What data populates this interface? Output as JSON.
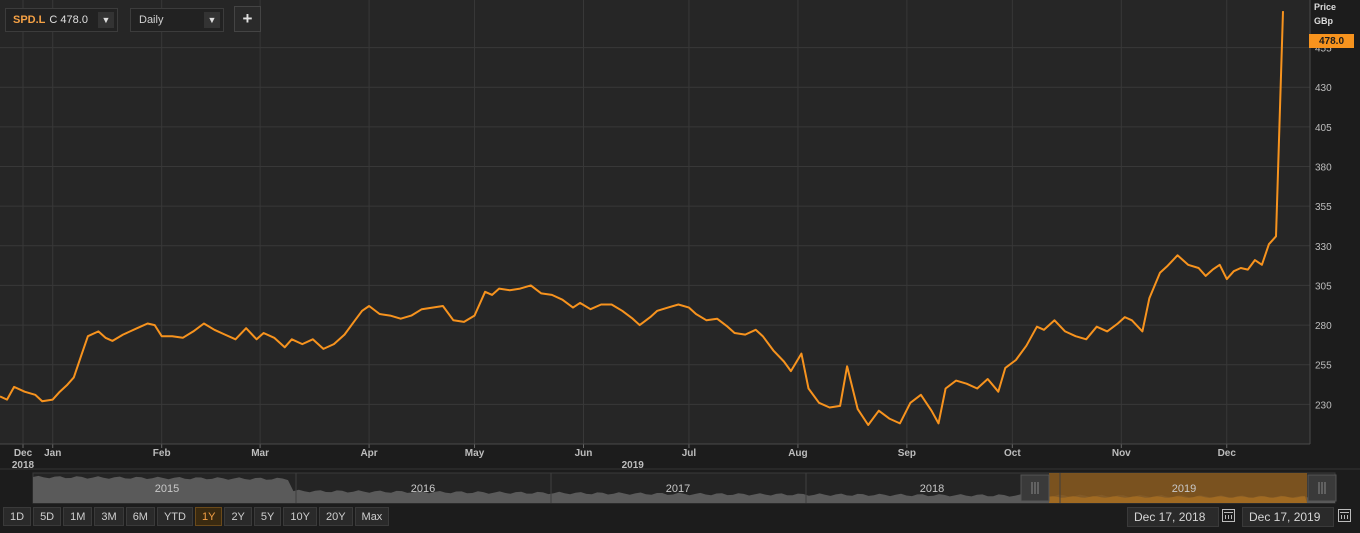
{
  "toolbar": {
    "ticker_symbol": "SPD.L",
    "ticker_close": "C 478.0",
    "interval": "Daily",
    "add_label": "+"
  },
  "price_panel": {
    "title_line1": "Price",
    "title_line2": "GBp",
    "last_price_label": "478.0"
  },
  "colors": {
    "background": "#1c1c1c",
    "plot_background": "#262626",
    "grid": "#383838",
    "line": "#f7931e",
    "badge": "#f7931e"
  },
  "chart_data": {
    "type": "line",
    "title": "",
    "xlabel": "",
    "ylabel": "Price GBp",
    "ylim": [
      205,
      485
    ],
    "yticks": [
      230,
      255,
      280,
      305,
      330,
      355,
      380,
      405,
      430,
      455
    ],
    "x_start": "2018-12-17",
    "x_end": "2019-12-17",
    "month_labels": [
      {
        "label": "Dec",
        "date": "2018-12-01"
      },
      {
        "label": "Jan",
        "date": "2019-01-01"
      },
      {
        "label": "Feb",
        "date": "2019-02-01"
      },
      {
        "label": "Mar",
        "date": "2019-03-01"
      },
      {
        "label": "Apr",
        "date": "2019-04-01"
      },
      {
        "label": "May",
        "date": "2019-05-01"
      },
      {
        "label": "Jun",
        "date": "2019-06-01"
      },
      {
        "label": "Jul",
        "date": "2019-07-01"
      },
      {
        "label": "Aug",
        "date": "2019-08-01"
      },
      {
        "label": "Sep",
        "date": "2019-09-01"
      },
      {
        "label": "Oct",
        "date": "2019-10-01"
      },
      {
        "label": "Nov",
        "date": "2019-11-01"
      },
      {
        "label": "Dec",
        "date": "2019-12-01"
      }
    ],
    "year_labels": [
      {
        "label": "2018",
        "date": "2018-12-01"
      },
      {
        "label": "2019",
        "date": "2019-06-15"
      }
    ],
    "grid": true,
    "series": [
      {
        "values": [
          [
            "2018-12-17",
            235
          ],
          [
            "2018-12-19",
            233
          ],
          [
            "2018-12-21",
            241
          ],
          [
            "2018-12-24",
            238
          ],
          [
            "2018-12-27",
            236
          ],
          [
            "2018-12-29",
            232
          ],
          [
            "2019-01-01",
            233
          ],
          [
            "2019-01-03",
            238
          ],
          [
            "2019-01-05",
            242
          ],
          [
            "2019-01-07",
            247
          ],
          [
            "2019-01-09",
            260
          ],
          [
            "2019-01-11",
            273
          ],
          [
            "2019-01-14",
            276
          ],
          [
            "2019-01-16",
            272
          ],
          [
            "2019-01-18",
            270
          ],
          [
            "2019-01-21",
            274
          ],
          [
            "2019-01-23",
            276
          ],
          [
            "2019-01-25",
            278
          ],
          [
            "2019-01-28",
            281
          ],
          [
            "2019-01-30",
            280
          ],
          [
            "2019-02-01",
            273
          ],
          [
            "2019-02-04",
            273
          ],
          [
            "2019-02-07",
            272
          ],
          [
            "2019-02-10",
            276
          ],
          [
            "2019-02-13",
            281
          ],
          [
            "2019-02-16",
            277
          ],
          [
            "2019-02-19",
            274
          ],
          [
            "2019-02-22",
            271
          ],
          [
            "2019-02-25",
            278
          ],
          [
            "2019-02-28",
            271
          ],
          [
            "2019-03-02",
            275
          ],
          [
            "2019-03-05",
            272
          ],
          [
            "2019-03-08",
            266
          ],
          [
            "2019-03-10",
            271
          ],
          [
            "2019-03-13",
            268
          ],
          [
            "2019-03-16",
            271
          ],
          [
            "2019-03-19",
            265
          ],
          [
            "2019-03-22",
            268
          ],
          [
            "2019-03-25",
            274
          ],
          [
            "2019-03-28",
            283
          ],
          [
            "2019-03-30",
            289
          ],
          [
            "2019-04-01",
            292
          ],
          [
            "2019-04-04",
            287
          ],
          [
            "2019-04-07",
            286
          ],
          [
            "2019-04-10",
            284
          ],
          [
            "2019-04-13",
            286
          ],
          [
            "2019-04-16",
            290
          ],
          [
            "2019-04-19",
            291
          ],
          [
            "2019-04-22",
            292
          ],
          [
            "2019-04-25",
            283
          ],
          [
            "2019-04-28",
            282
          ],
          [
            "2019-05-01",
            286
          ],
          [
            "2019-05-04",
            301
          ],
          [
            "2019-05-06",
            299
          ],
          [
            "2019-05-08",
            303
          ],
          [
            "2019-05-11",
            302
          ],
          [
            "2019-05-14",
            303
          ],
          [
            "2019-05-17",
            305
          ],
          [
            "2019-05-20",
            300
          ],
          [
            "2019-05-23",
            299
          ],
          [
            "2019-05-26",
            296
          ],
          [
            "2019-05-29",
            291
          ],
          [
            "2019-05-31",
            294
          ],
          [
            "2019-06-03",
            290
          ],
          [
            "2019-06-06",
            293
          ],
          [
            "2019-06-09",
            293
          ],
          [
            "2019-06-12",
            289
          ],
          [
            "2019-06-15",
            284
          ],
          [
            "2019-06-17",
            280
          ],
          [
            "2019-06-20",
            285
          ],
          [
            "2019-06-22",
            289
          ],
          [
            "2019-06-25",
            291
          ],
          [
            "2019-06-28",
            293
          ],
          [
            "2019-07-01",
            291
          ],
          [
            "2019-07-03",
            287
          ],
          [
            "2019-07-06",
            283
          ],
          [
            "2019-07-09",
            284
          ],
          [
            "2019-07-12",
            279
          ],
          [
            "2019-07-14",
            275
          ],
          [
            "2019-07-17",
            274
          ],
          [
            "2019-07-20",
            277
          ],
          [
            "2019-07-22",
            273
          ],
          [
            "2019-07-25",
            264
          ],
          [
            "2019-07-28",
            257
          ],
          [
            "2019-07-30",
            251
          ],
          [
            "2019-08-02",
            262
          ],
          [
            "2019-08-04",
            240
          ],
          [
            "2019-08-07",
            231
          ],
          [
            "2019-08-10",
            228
          ],
          [
            "2019-08-13",
            229
          ],
          [
            "2019-08-15",
            254
          ],
          [
            "2019-08-18",
            227
          ],
          [
            "2019-08-21",
            217
          ],
          [
            "2019-08-24",
            226
          ],
          [
            "2019-08-27",
            221
          ],
          [
            "2019-08-30",
            218
          ],
          [
            "2019-09-02",
            231
          ],
          [
            "2019-09-05",
            236
          ],
          [
            "2019-09-08",
            226
          ],
          [
            "2019-09-10",
            218
          ],
          [
            "2019-09-12",
            240
          ],
          [
            "2019-09-15",
            245
          ],
          [
            "2019-09-18",
            243
          ],
          [
            "2019-09-21",
            240
          ],
          [
            "2019-09-24",
            246
          ],
          [
            "2019-09-27",
            238
          ],
          [
            "2019-09-29",
            253
          ],
          [
            "2019-10-02",
            258
          ],
          [
            "2019-10-05",
            267
          ],
          [
            "2019-10-08",
            279
          ],
          [
            "2019-10-10",
            277
          ],
          [
            "2019-10-13",
            283
          ],
          [
            "2019-10-16",
            276
          ],
          [
            "2019-10-19",
            273
          ],
          [
            "2019-10-22",
            271
          ],
          [
            "2019-10-25",
            279
          ],
          [
            "2019-10-28",
            276
          ],
          [
            "2019-10-31",
            281
          ],
          [
            "2019-11-02",
            285
          ],
          [
            "2019-11-04",
            283
          ],
          [
            "2019-11-07",
            276
          ],
          [
            "2019-11-09",
            297
          ],
          [
            "2019-11-12",
            313
          ],
          [
            "2019-11-14",
            317
          ],
          [
            "2019-11-17",
            324
          ],
          [
            "2019-11-20",
            318
          ],
          [
            "2019-11-23",
            316
          ],
          [
            "2019-11-25",
            311
          ],
          [
            "2019-11-27",
            315
          ],
          [
            "2019-11-29",
            318
          ],
          [
            "2019-12-01",
            309
          ],
          [
            "2019-12-03",
            314
          ],
          [
            "2019-12-05",
            316
          ],
          [
            "2019-12-07",
            315
          ],
          [
            "2019-12-09",
            321
          ],
          [
            "2019-12-11",
            318
          ],
          [
            "2019-12-13",
            331
          ],
          [
            "2019-12-15",
            336
          ],
          [
            "2019-12-17",
            478
          ]
        ]
      }
    ]
  },
  "navigator": {
    "years": [
      "2015",
      "2016",
      "2017",
      "2018",
      "2019"
    ]
  },
  "periods": [
    {
      "label": "1D",
      "active": false
    },
    {
      "label": "5D",
      "active": false
    },
    {
      "label": "1M",
      "active": false
    },
    {
      "label": "3M",
      "active": false
    },
    {
      "label": "6M",
      "active": false
    },
    {
      "label": "YTD",
      "active": false
    },
    {
      "label": "1Y",
      "active": true
    },
    {
      "label": "2Y",
      "active": false
    },
    {
      "label": "5Y",
      "active": false
    },
    {
      "label": "10Y",
      "active": false
    },
    {
      "label": "20Y",
      "active": false
    },
    {
      "label": "Max",
      "active": false
    }
  ],
  "date_range": {
    "start": "Dec 17, 2018",
    "end": "Dec 17, 2019"
  }
}
